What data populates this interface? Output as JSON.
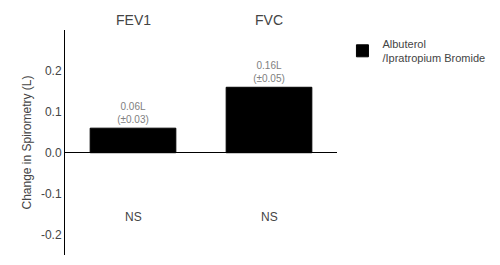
{
  "chart_data": {
    "type": "bar",
    "categories": [
      "FEV1",
      "FVC"
    ],
    "series": [
      {
        "name": "Albuterol\n/Ipratropium Bromide",
        "color": "black",
        "values": [
          0.06,
          0.16
        ],
        "value_labels": [
          "0.06L\n(±0.03)",
          "0.16L\n(±0.05)"
        ]
      }
    ],
    "ylabel": "Change in Spirometry (L)",
    "ylim": [
      -0.25,
      0.3
    ],
    "yticks": [
      -0.2,
      -0.1,
      {
        "value": 0.0,
        "label": "0.0"
      },
      0.1,
      0.2
    ],
    "annotations": [
      {
        "text": "NS",
        "category": "FEV1"
      },
      {
        "text": "NS",
        "category": "FVC"
      }
    ],
    "data_labels": true,
    "tick_labels": "y",
    "grid": false,
    "legend": "right"
  }
}
